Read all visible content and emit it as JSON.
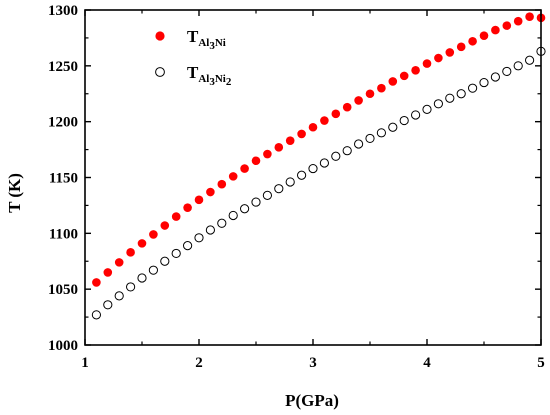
{
  "chart_data": {
    "type": "scatter",
    "xlabel": "P(GPa)",
    "ylabel": "T (K)",
    "xlim": [
      1,
      5
    ],
    "ylim": [
      1000,
      1300
    ],
    "x_ticks": [
      1,
      2,
      3,
      4,
      5
    ],
    "y_ticks": [
      1000,
      1050,
      1100,
      1150,
      1200,
      1250,
      1300
    ],
    "x_tick_labels": [
      "1",
      "2",
      "3",
      "4",
      "5"
    ],
    "y_tick_labels": [
      "1000",
      "1050",
      "1100",
      "1150",
      "1200",
      "1250",
      "1300"
    ],
    "legend": {
      "placement": "top-left"
    },
    "series": [
      {
        "label_main": "T",
        "label_sub": "Al",
        "label_sub_sub": "3",
        "label_sub2": "Ni",
        "label_sub2_sub": "",
        "marker": "filled-circle",
        "color": "#ff0000",
        "x": [
          1.1,
          1.2,
          1.3,
          1.4,
          1.5,
          1.6,
          1.7,
          1.8,
          1.9,
          2.0,
          2.1,
          2.2,
          2.3,
          2.4,
          2.5,
          2.6,
          2.7,
          2.8,
          2.9,
          3.0,
          3.1,
          3.2,
          3.3,
          3.4,
          3.5,
          3.6,
          3.7,
          3.8,
          3.9,
          4.0,
          4.1,
          4.2,
          4.3,
          4.4,
          4.5,
          4.6,
          4.7,
          4.8,
          4.9,
          5.0
        ],
        "y": [
          1056,
          1065,
          1074,
          1083,
          1091,
          1099,
          1107,
          1115,
          1123,
          1130,
          1137,
          1144,
          1151,
          1158,
          1165,
          1171,
          1177,
          1183,
          1189,
          1195,
          1201,
          1207,
          1213,
          1219,
          1225,
          1230,
          1236,
          1241,
          1246,
          1252,
          1257,
          1262,
          1267,
          1272,
          1277,
          1282,
          1286,
          1290,
          1294,
          1293
        ]
      },
      {
        "label_main": "T",
        "label_sub": "Al",
        "label_sub_sub": "3",
        "label_sub2": "Ni",
        "label_sub2_sub": "2",
        "marker": "open-circle",
        "color": "#000000",
        "x": [
          1.1,
          1.2,
          1.3,
          1.4,
          1.5,
          1.6,
          1.7,
          1.8,
          1.9,
          2.0,
          2.1,
          2.2,
          2.3,
          2.4,
          2.5,
          2.6,
          2.7,
          2.8,
          2.9,
          3.0,
          3.1,
          3.2,
          3.3,
          3.4,
          3.5,
          3.6,
          3.7,
          3.8,
          3.9,
          4.0,
          4.1,
          4.2,
          4.3,
          4.4,
          4.5,
          4.6,
          4.7,
          4.8,
          4.9,
          5.0
        ],
        "y": [
          1027,
          1036,
          1044,
          1052,
          1060,
          1067,
          1075,
          1082,
          1089,
          1096,
          1103,
          1109,
          1116,
          1122,
          1128,
          1134,
          1140,
          1146,
          1152,
          1158,
          1163,
          1169,
          1174,
          1180,
          1185,
          1190,
          1195,
          1201,
          1206,
          1211,
          1216,
          1221,
          1225,
          1230,
          1235,
          1240,
          1245,
          1250,
          1255,
          1263
        ]
      }
    ]
  }
}
